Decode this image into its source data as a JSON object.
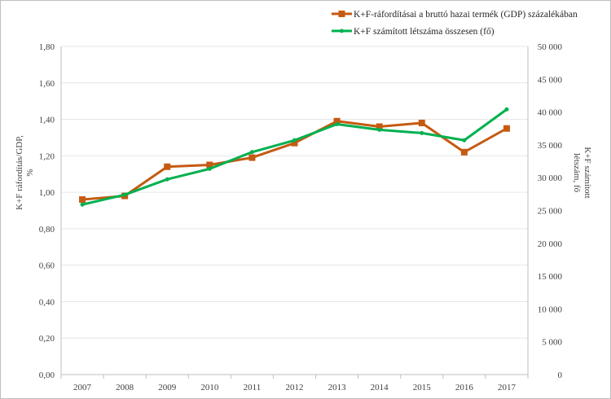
{
  "chart_data": {
    "type": "line",
    "categories": [
      "2007",
      "2008",
      "2009",
      "2010",
      "2011",
      "2012",
      "2013",
      "2014",
      "2015",
      "2016",
      "2017"
    ],
    "series": [
      {
        "name": "K+F-ráfordításai a bruttó hazai termék (GDP) százalékában",
        "axis": "left",
        "color": "#c55a11",
        "marker": "square",
        "values": [
          0.96,
          0.98,
          1.14,
          1.15,
          1.19,
          1.27,
          1.39,
          1.36,
          1.38,
          1.22,
          1.35
        ]
      },
      {
        "name": "K+F számított létszáma összesen (fő)",
        "axis": "right",
        "color": "#00b050",
        "marker": "circle",
        "values": [
          25900,
          27400,
          29750,
          31350,
          33900,
          35700,
          38150,
          37300,
          36800,
          35700,
          40400
        ]
      }
    ],
    "ylabel": "K+F ráfordítás/GDP, %",
    "ylabel_right": "K+F számított létszám, fő",
    "ylim": [
      0,
      1.8
    ],
    "ylim_right": [
      0,
      50000
    ],
    "yticks": [
      "0,00",
      "0,20",
      "0,40",
      "0,60",
      "0,80",
      "1,00",
      "1,20",
      "1,40",
      "1,60",
      "1,80"
    ],
    "yticks_right": [
      "0",
      "5 000",
      "10 000",
      "15 000",
      "20 000",
      "25 000",
      "30 000",
      "35 000",
      "40 000",
      "45 000",
      "50 000"
    ],
    "grid": true,
    "legend_position": "top-right"
  }
}
